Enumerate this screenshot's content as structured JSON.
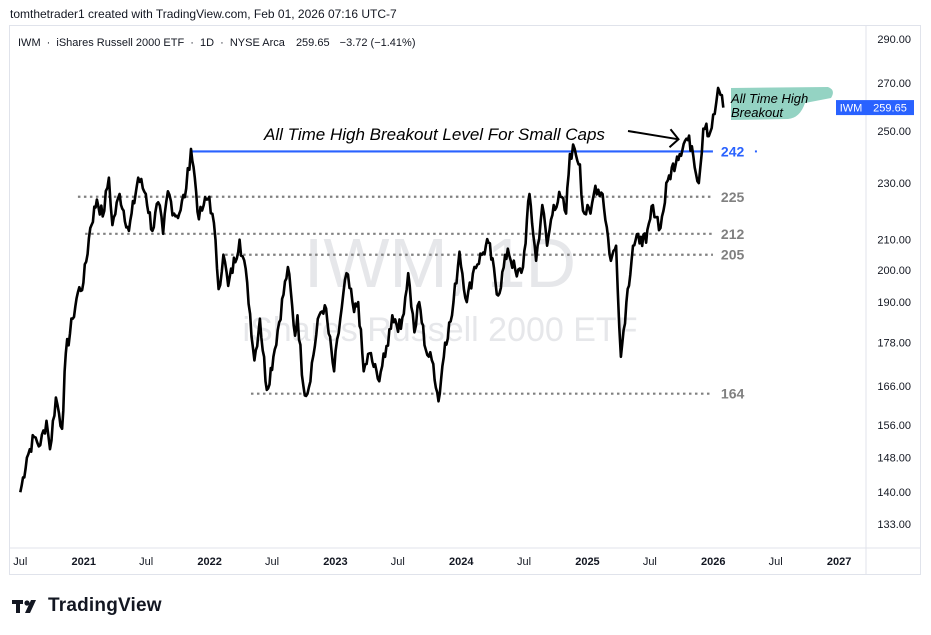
{
  "header": {
    "credit": "tomthetrader1 created with TradingView.com, Feb 01, 2026 07:16 UTC-7"
  },
  "legend": {
    "symbol": "IWM",
    "name": "iShares Russell 2000 ETF",
    "interval": "1D",
    "exchange": "NYSE Arca",
    "last": "259.65",
    "change": "−3.72 (−1.41%)",
    "separator": "·"
  },
  "watermark": {
    "line1": "IWM, 1D",
    "line2": "iShares Russell 2000 ETF"
  },
  "branding": {
    "logo_text": "TradingView"
  },
  "colors": {
    "price_line": "#000000",
    "breakout_line": "#2962ff",
    "support_line": "#808080",
    "annotation_fill": "#8ed1c0",
    "price_tag": "#2962ff"
  },
  "chart_data": {
    "type": "line",
    "symbol": "IWM",
    "scale": "log",
    "grid": false,
    "ylim": [
      128,
      296
    ],
    "xlim": [
      "2020-06-01",
      "2027-03-20"
    ],
    "y_ticks": [
      "290.00",
      "270.00",
      "250.00",
      "230.00",
      "210.00",
      "200.00",
      "190.00",
      "178.00",
      "166.00",
      "156.00",
      "148.00",
      "140.00",
      "133.00"
    ],
    "x_ticks": [
      {
        "label": "Jul",
        "date": "2020-07-01",
        "bold": false
      },
      {
        "label": "2021",
        "date": "2021-01-01",
        "bold": true
      },
      {
        "label": "Jul",
        "date": "2021-07-01",
        "bold": false
      },
      {
        "label": "2022",
        "date": "2022-01-01",
        "bold": true
      },
      {
        "label": "Jul",
        "date": "2022-07-01",
        "bold": false
      },
      {
        "label": "2023",
        "date": "2023-01-01",
        "bold": true
      },
      {
        "label": "Jul",
        "date": "2023-07-01",
        "bold": false
      },
      {
        "label": "2024",
        "date": "2024-01-01",
        "bold": true
      },
      {
        "label": "Jul",
        "date": "2024-07-01",
        "bold": false
      },
      {
        "label": "2025",
        "date": "2025-01-01",
        "bold": true
      },
      {
        "label": "Jul",
        "date": "2025-07-01",
        "bold": false
      },
      {
        "label": "2026",
        "date": "2026-01-01",
        "bold": true
      },
      {
        "label": "Jul",
        "date": "2026-07-01",
        "bold": false
      },
      {
        "label": "2027",
        "date": "2027-01-01",
        "bold": true
      }
    ],
    "price_series": {
      "name": "IWM",
      "points": [
        {
          "x": "2020-07-01",
          "y": 140
        },
        {
          "x": "2020-07-20",
          "y": 148
        },
        {
          "x": "2020-08-10",
          "y": 153
        },
        {
          "x": "2020-08-28",
          "y": 151
        },
        {
          "x": "2020-09-15",
          "y": 157
        },
        {
          "x": "2020-09-25",
          "y": 150
        },
        {
          "x": "2020-10-12",
          "y": 163
        },
        {
          "x": "2020-10-30",
          "y": 155
        },
        {
          "x": "2020-11-10",
          "y": 175
        },
        {
          "x": "2020-11-30",
          "y": 185
        },
        {
          "x": "2020-12-15",
          "y": 193
        },
        {
          "x": "2020-12-31",
          "y": 196
        },
        {
          "x": "2021-01-20",
          "y": 214
        },
        {
          "x": "2021-02-08",
          "y": 224
        },
        {
          "x": "2021-02-25",
          "y": 218
        },
        {
          "x": "2021-03-15",
          "y": 232
        },
        {
          "x": "2021-03-25",
          "y": 215
        },
        {
          "x": "2021-04-15",
          "y": 226
        },
        {
          "x": "2021-05-12",
          "y": 213
        },
        {
          "x": "2021-06-08",
          "y": 232
        },
        {
          "x": "2021-06-30",
          "y": 226
        },
        {
          "x": "2021-07-19",
          "y": 213
        },
        {
          "x": "2021-08-05",
          "y": 223
        },
        {
          "x": "2021-08-19",
          "y": 212
        },
        {
          "x": "2021-09-02",
          "y": 227
        },
        {
          "x": "2021-09-20",
          "y": 219
        },
        {
          "x": "2021-10-05",
          "y": 219
        },
        {
          "x": "2021-10-25",
          "y": 228
        },
        {
          "x": "2021-11-08",
          "y": 243
        },
        {
          "x": "2021-11-19",
          "y": 232
        },
        {
          "x": "2021-12-01",
          "y": 217
        },
        {
          "x": "2021-12-15",
          "y": 222
        },
        {
          "x": "2021-12-31",
          "y": 225
        },
        {
          "x": "2022-01-18",
          "y": 210
        },
        {
          "x": "2022-01-27",
          "y": 194
        },
        {
          "x": "2022-02-10",
          "y": 205
        },
        {
          "x": "2022-02-24",
          "y": 195
        },
        {
          "x": "2022-03-29",
          "y": 210
        },
        {
          "x": "2022-04-20",
          "y": 196
        },
        {
          "x": "2022-05-11",
          "y": 173
        },
        {
          "x": "2022-05-27",
          "y": 185
        },
        {
          "x": "2022-06-16",
          "y": 165
        },
        {
          "x": "2022-07-05",
          "y": 174
        },
        {
          "x": "2022-08-16",
          "y": 201
        },
        {
          "x": "2022-09-06",
          "y": 180
        },
        {
          "x": "2022-09-13",
          "y": 186
        },
        {
          "x": "2022-09-30",
          "y": 166
        },
        {
          "x": "2022-10-12",
          "y": 164
        },
        {
          "x": "2022-11-15",
          "y": 186
        },
        {
          "x": "2022-12-01",
          "y": 189
        },
        {
          "x": "2022-12-28",
          "y": 170
        },
        {
          "x": "2023-01-15",
          "y": 185
        },
        {
          "x": "2023-02-02",
          "y": 199
        },
        {
          "x": "2023-02-24",
          "y": 187
        },
        {
          "x": "2023-03-08",
          "y": 190
        },
        {
          "x": "2023-03-24",
          "y": 170
        },
        {
          "x": "2023-04-10",
          "y": 175
        },
        {
          "x": "2023-05-04",
          "y": 168
        },
        {
          "x": "2023-05-25",
          "y": 174
        },
        {
          "x": "2023-06-15",
          "y": 186
        },
        {
          "x": "2023-07-10",
          "y": 182
        },
        {
          "x": "2023-07-31",
          "y": 199
        },
        {
          "x": "2023-08-18",
          "y": 181
        },
        {
          "x": "2023-09-01",
          "y": 190
        },
        {
          "x": "2023-09-20",
          "y": 176
        },
        {
          "x": "2023-10-12",
          "y": 172
        },
        {
          "x": "2023-10-27",
          "y": 162
        },
        {
          "x": "2023-11-15",
          "y": 178
        },
        {
          "x": "2023-12-05",
          "y": 186
        },
        {
          "x": "2023-12-27",
          "y": 206
        },
        {
          "x": "2024-01-17",
          "y": 190
        },
        {
          "x": "2024-02-08",
          "y": 201
        },
        {
          "x": "2024-03-01",
          "y": 205
        },
        {
          "x": "2024-03-20",
          "y": 209
        },
        {
          "x": "2024-04-17",
          "y": 192
        },
        {
          "x": "2024-05-15",
          "y": 207
        },
        {
          "x": "2024-06-10",
          "y": 198
        },
        {
          "x": "2024-06-28",
          "y": 201
        },
        {
          "x": "2024-07-17",
          "y": 226
        },
        {
          "x": "2024-08-05",
          "y": 203
        },
        {
          "x": "2024-08-23",
          "y": 222
        },
        {
          "x": "2024-09-06",
          "y": 208
        },
        {
          "x": "2024-09-25",
          "y": 222
        },
        {
          "x": "2024-10-15",
          "y": 225
        },
        {
          "x": "2024-10-31",
          "y": 219
        },
        {
          "x": "2024-11-11",
          "y": 241
        },
        {
          "x": "2024-11-25",
          "y": 243
        },
        {
          "x": "2024-12-10",
          "y": 237
        },
        {
          "x": "2024-12-19",
          "y": 220
        },
        {
          "x": "2025-01-10",
          "y": 219
        },
        {
          "x": "2025-01-24",
          "y": 229
        },
        {
          "x": "2025-02-14",
          "y": 226
        },
        {
          "x": "2025-03-10",
          "y": 203
        },
        {
          "x": "2025-03-25",
          "y": 208
        },
        {
          "x": "2025-04-08",
          "y": 174
        },
        {
          "x": "2025-04-24",
          "y": 190
        },
        {
          "x": "2025-05-13",
          "y": 208
        },
        {
          "x": "2025-06-05",
          "y": 211
        },
        {
          "x": "2025-06-20",
          "y": 209
        },
        {
          "x": "2025-07-10",
          "y": 222
        },
        {
          "x": "2025-08-01",
          "y": 214
        },
        {
          "x": "2025-08-22",
          "y": 231
        },
        {
          "x": "2025-09-18",
          "y": 240
        },
        {
          "x": "2025-10-15",
          "y": 247
        },
        {
          "x": "2025-10-31",
          "y": 244
        },
        {
          "x": "2025-11-20",
          "y": 230
        },
        {
          "x": "2025-12-03",
          "y": 251
        },
        {
          "x": "2025-12-12",
          "y": 253
        },
        {
          "x": "2025-12-19",
          "y": 248
        },
        {
          "x": "2026-01-05",
          "y": 257
        },
        {
          "x": "2026-01-15",
          "y": 268
        },
        {
          "x": "2026-01-22",
          "y": 265
        },
        {
          "x": "2026-01-30",
          "y": 259.65
        }
      ]
    },
    "levels": [
      {
        "label": "242",
        "value": 242,
        "style": "solid",
        "color": "#2962ff",
        "from": "2021-11-08",
        "to": "2025-12-31"
      },
      {
        "label": "225",
        "value": 225,
        "style": "dotted",
        "color": "#808080",
        "from": "2020-12-15",
        "to": "2025-12-31"
      },
      {
        "label": "212",
        "value": 212,
        "style": "dotted",
        "color": "#808080",
        "from": "2021-01-05",
        "to": "2025-12-31"
      },
      {
        "label": "205",
        "value": 205,
        "style": "dotted",
        "color": "#808080",
        "from": "2022-02-15",
        "to": "2025-12-31"
      },
      {
        "label": "164",
        "value": 164,
        "style": "dotted",
        "color": "#808080",
        "from": "2022-05-01",
        "to": "2025-12-31"
      }
    ],
    "annotations": [
      {
        "text": "All Time High Breakout Level For Small Caps",
        "arrow_to": {
          "x": "2025-09-22",
          "y": 244
        }
      },
      {
        "text": [
          "All Time High",
          "Breakout"
        ],
        "highlight": true
      }
    ],
    "price_tag": {
      "symbol": "IWM",
      "value": "259.65"
    }
  }
}
